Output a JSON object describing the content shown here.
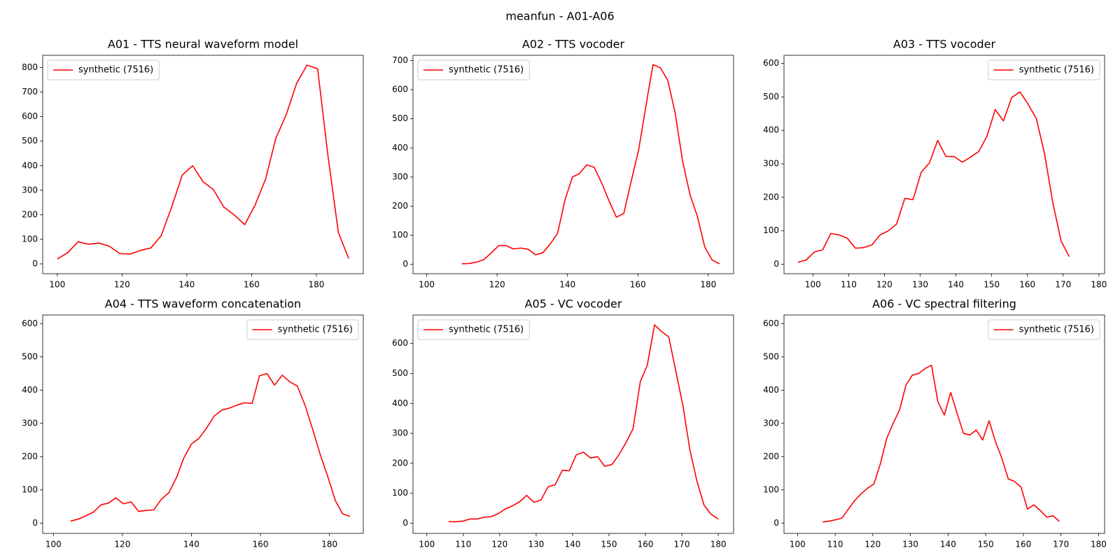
{
  "title": "meanfun - A01-A06",
  "chart_data": [
    {
      "type": "line",
      "title": "A01 - TTS neural waveform model",
      "x": [
        100,
        103.2,
        106.4,
        109.6,
        112.9,
        116.1,
        119.3,
        122.5,
        125.7,
        128.9,
        132.1,
        135.4,
        138.6,
        141.8,
        145.0,
        148.2,
        151.4,
        154.6,
        157.9,
        161.1,
        164.3,
        167.5,
        170.7,
        173.9,
        177.1,
        180.4,
        183.6,
        186.8,
        190.0
      ],
      "series": [
        {
          "name": "synthetic (7516)",
          "color": "#ff0000",
          "values": [
            20,
            45,
            90,
            80,
            85,
            72,
            42,
            40,
            55,
            65,
            115,
            235,
            362,
            400,
            335,
            303,
            232,
            200,
            160,
            240,
            345,
            512,
            608,
            735,
            810,
            795,
            440,
            128,
            22
          ]
        }
      ],
      "xlim": [
        95.5,
        194.5
      ],
      "ylim": [
        -40,
        850
      ],
      "xticks": [
        100,
        120,
        140,
        160,
        180
      ],
      "yticks": [
        0,
        100,
        200,
        300,
        400,
        500,
        600,
        700,
        800
      ],
      "legend": "upper left"
    },
    {
      "type": "line",
      "title": "A02 - TTS vocoder",
      "x": [
        110.0,
        112.1,
        114.2,
        116.3,
        118.4,
        120.5,
        122.5,
        124.6,
        126.7,
        128.8,
        130.9,
        133.0,
        135.1,
        137.2,
        139.3,
        141.4,
        143.4,
        145.5,
        147.6,
        149.7,
        151.8,
        153.9,
        156.0,
        158.1,
        160.2,
        162.3,
        164.3,
        166.4,
        168.5,
        170.6,
        172.7,
        174.8,
        176.9,
        179.0,
        181.1,
        183.2
      ],
      "series": [
        {
          "name": "synthetic (7516)",
          "color": "#ff0000",
          "values": [
            2,
            3,
            8,
            17,
            40,
            65,
            65,
            53,
            56,
            52,
            33,
            40,
            70,
            107,
            222,
            300,
            312,
            342,
            333,
            280,
            218,
            162,
            175,
            285,
            392,
            545,
            686,
            675,
            632,
            520,
            355,
            240,
            165,
            60,
            15,
            2
          ]
        }
      ],
      "xlim": [
        96.1,
        187.2
      ],
      "ylim": [
        -32,
        718
      ],
      "xticks": [
        100,
        120,
        140,
        160,
        180
      ],
      "yticks": [
        0,
        100,
        200,
        300,
        400,
        500,
        600,
        700
      ],
      "legend": "upper left"
    },
    {
      "type": "line",
      "title": "A03 - TTS vocoder",
      "x": [
        95.8,
        98.1,
        100.4,
        102.7,
        105.0,
        107.3,
        109.6,
        111.9,
        114.2,
        116.5,
        118.8,
        121.1,
        123.4,
        125.7,
        128.0,
        130.3,
        132.6,
        134.9,
        137.2,
        139.5,
        141.8,
        144.1,
        146.4,
        148.7,
        151.0,
        153.3,
        155.6,
        157.9,
        160.2,
        162.5,
        164.8,
        167.1,
        169.4,
        171.7
      ],
      "series": [
        {
          "name": "synthetic (7516)",
          "color": "#ff0000",
          "values": [
            6,
            13,
            37,
            43,
            92,
            88,
            78,
            48,
            50,
            58,
            88,
            100,
            120,
            197,
            193,
            275,
            303,
            370,
            322,
            322,
            305,
            320,
            337,
            383,
            462,
            428,
            498,
            515,
            478,
            435,
            330,
            185,
            70,
            23
          ]
        }
      ],
      "xlim": [
        91.9,
        181.6
      ],
      "ylim": [
        -28,
        624
      ],
      "xticks": [
        100,
        110,
        120,
        130,
        140,
        150,
        160,
        170,
        180
      ],
      "yticks": [
        0,
        100,
        200,
        300,
        400,
        500,
        600
      ],
      "legend": "upper right"
    },
    {
      "type": "line",
      "title": "A04 - TTS waveform concatenation",
      "x": [
        105.0,
        107.2,
        109.4,
        111.6,
        113.8,
        115.9,
        118.1,
        120.3,
        122.5,
        124.7,
        126.9,
        129.1,
        131.3,
        133.5,
        135.7,
        137.8,
        140.0,
        142.2,
        144.4,
        146.6,
        148.8,
        151.0,
        153.2,
        155.4,
        157.6,
        159.7,
        161.9,
        164.1,
        166.3,
        168.5,
        170.7,
        172.9,
        175.1,
        177.3,
        179.5,
        181.7,
        183.8,
        186.0
      ],
      "series": [
        {
          "name": "synthetic (7516)",
          "color": "#ff0000",
          "values": [
            6,
            12,
            22,
            33,
            55,
            60,
            76,
            58,
            64,
            35,
            38,
            40,
            72,
            92,
            138,
            196,
            238,
            255,
            286,
            322,
            340,
            346,
            355,
            362,
            360,
            443,
            450,
            415,
            445,
            425,
            412,
            355,
            283,
            207,
            140,
            68,
            28,
            20
          ]
        }
      ],
      "xlim": [
        96.9,
        189.8
      ],
      "ylim": [
        -31,
        626
      ],
      "xticks": [
        100,
        120,
        140,
        160,
        180
      ],
      "yticks": [
        0,
        100,
        200,
        300,
        400,
        500,
        600
      ],
      "legend": "upper right"
    },
    {
      "type": "line",
      "title": "A05 - VC vocoder",
      "x": [
        106.0,
        107.9,
        109.9,
        111.8,
        113.8,
        115.7,
        117.7,
        119.6,
        121.6,
        123.5,
        125.5,
        127.4,
        129.4,
        131.3,
        133.3,
        135.2,
        137.2,
        139.1,
        141.0,
        143.0,
        144.9,
        146.9,
        148.8,
        150.8,
        152.7,
        154.7,
        156.6,
        158.6,
        160.5,
        162.5,
        164.4,
        166.4,
        168.3,
        170.3,
        172.2,
        174.1,
        176.1,
        178.0,
        180.0
      ],
      "series": [
        {
          "name": "synthetic (7516)",
          "color": "#ff0000",
          "values": [
            5,
            5,
            7,
            14,
            14,
            20,
            22,
            32,
            48,
            58,
            72,
            93,
            70,
            77,
            122,
            128,
            177,
            175,
            228,
            237,
            218,
            222,
            190,
            196,
            228,
            270,
            315,
            473,
            527,
            662,
            640,
            622,
            510,
            392,
            245,
            142,
            60,
            30,
            14
          ]
        }
      ],
      "xlim": [
        96.2,
        184.2
      ],
      "ylim": [
        -34,
        695
      ],
      "xticks": [
        100,
        110,
        120,
        130,
        140,
        150,
        160,
        170,
        180
      ],
      "yticks": [
        0,
        100,
        200,
        300,
        400,
        500,
        600
      ],
      "legend": "upper left"
    },
    {
      "type": "line",
      "title": "A06 - VC spectral filtering",
      "x": [
        106.7,
        108.4,
        110.1,
        111.8,
        113.5,
        115.2,
        116.9,
        118.6,
        120.3,
        122.0,
        123.7,
        125.4,
        127.1,
        128.8,
        130.5,
        132.2,
        133.9,
        135.6,
        137.3,
        139.0,
        140.7,
        142.4,
        144.1,
        145.8,
        147.5,
        149.2,
        150.9,
        152.6,
        154.3,
        156.0,
        157.7,
        159.4,
        161.1,
        162.8,
        164.5,
        166.2,
        167.9,
        169.6
      ],
      "series": [
        {
          "name": "synthetic (7516)",
          "color": "#ff0000",
          "values": [
            3,
            6,
            10,
            15,
            42,
            68,
            88,
            105,
            118,
            178,
            255,
            300,
            340,
            415,
            445,
            450,
            465,
            475,
            365,
            325,
            393,
            330,
            270,
            265,
            280,
            250,
            308,
            245,
            195,
            133,
            125,
            108,
            42,
            55,
            38,
            18,
            22,
            5
          ]
        }
      ],
      "xlim": [
        96.4,
        181.6
      ],
      "ylim": [
        -31,
        626
      ],
      "xticks": [
        100,
        110,
        120,
        130,
        140,
        150,
        160,
        170,
        180
      ],
      "yticks": [
        0,
        100,
        200,
        300,
        400,
        500,
        600
      ],
      "legend": "upper right"
    }
  ]
}
